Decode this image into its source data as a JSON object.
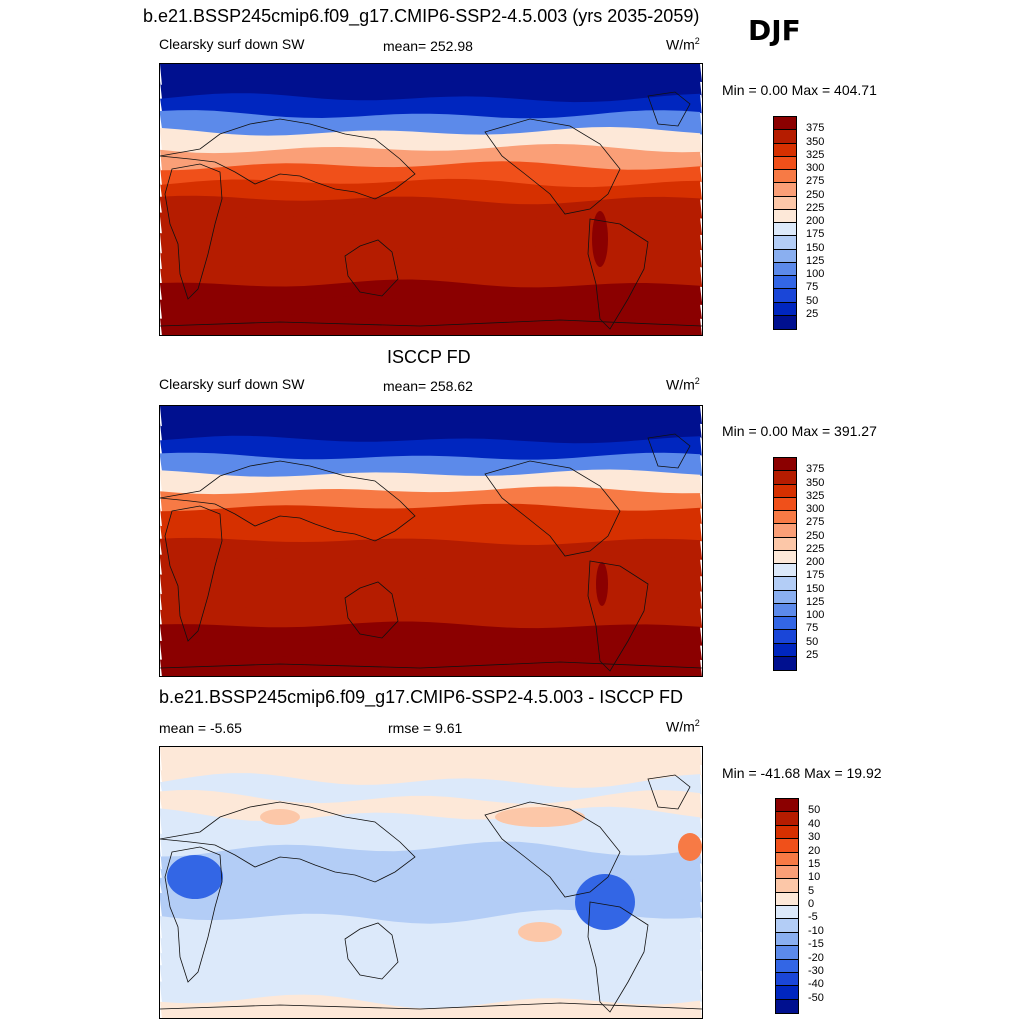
{
  "header": {
    "title": "b.e21.BSSP245cmip6.f09_g17.CMIP6-SSP2-4.5.003 (yrs 2035-2059)",
    "season": "DJF"
  },
  "panels": [
    {
      "title": "",
      "left_label": "Clearsky surf down SW",
      "center_label": "mean= 252.98",
      "units": "W/m",
      "units_sup": "2",
      "minmax": "Min =   0.00 Max = 404.71",
      "colorbar_ticks": [
        "375",
        "350",
        "325",
        "300",
        "275",
        "250",
        "225",
        "200",
        "175",
        "150",
        "125",
        "100",
        "75",
        "50",
        "25"
      ]
    },
    {
      "title": "ISCCP FD",
      "left_label": "Clearsky surf down SW",
      "center_label": "mean= 258.62",
      "units": "W/m",
      "units_sup": "2",
      "minmax": "Min =   0.00 Max = 391.27",
      "colorbar_ticks": [
        "375",
        "350",
        "325",
        "300",
        "275",
        "250",
        "225",
        "200",
        "175",
        "150",
        "125",
        "100",
        "75",
        "50",
        "25"
      ]
    },
    {
      "title": "b.e21.BSSP245cmip6.f09_g17.CMIP6-SSP2-4.5.003 - ISCCP FD",
      "left_label": "mean =  -5.65",
      "center_label": "rmse =   9.61",
      "units": "W/m",
      "units_sup": "2",
      "minmax": "Min = -41.68 Max =  19.92",
      "colorbar_ticks": [
        "50",
        "40",
        "30",
        "20",
        "15",
        "10",
        "5",
        "0",
        "-5",
        "-10",
        "-15",
        "-20",
        "-30",
        "-40",
        "-50"
      ]
    }
  ],
  "colors": {
    "flux_scale": [
      "#8b0000",
      "#b51c00",
      "#d63000",
      "#f0501a",
      "#f77a45",
      "#fa9f77",
      "#fcc7a8",
      "#fde8d8",
      "#dce9fa",
      "#b3cdf6",
      "#8aaff0",
      "#5c8aea",
      "#3366e5",
      "#1a46d8",
      "#0026bf",
      "#00108f"
    ],
    "diff_scale": [
      "#8b0000",
      "#b51c00",
      "#d63000",
      "#f0501a",
      "#f77a45",
      "#fa9f77",
      "#fcc7a8",
      "#fde8d8",
      "#dce9fa",
      "#b3cdf6",
      "#8aaff0",
      "#5c8aea",
      "#3366e5",
      "#1a46d8",
      "#0026bf",
      "#00108f"
    ]
  },
  "map_fields": {
    "model_flux": [
      5,
      15,
      45,
      120,
      200,
      270,
      320,
      345,
      355,
      360,
      365,
      370,
      372,
      375,
      385,
      395
    ],
    "obs_flux": [
      3,
      12,
      40,
      115,
      210,
      280,
      325,
      348,
      358,
      362,
      366,
      370,
      373,
      378,
      388,
      392
    ],
    "difference_bands": [
      0,
      2,
      -2,
      3,
      -2,
      -3,
      -8,
      -12,
      -10,
      -8,
      -6,
      -4,
      -3,
      -2,
      -1,
      0
    ]
  }
}
